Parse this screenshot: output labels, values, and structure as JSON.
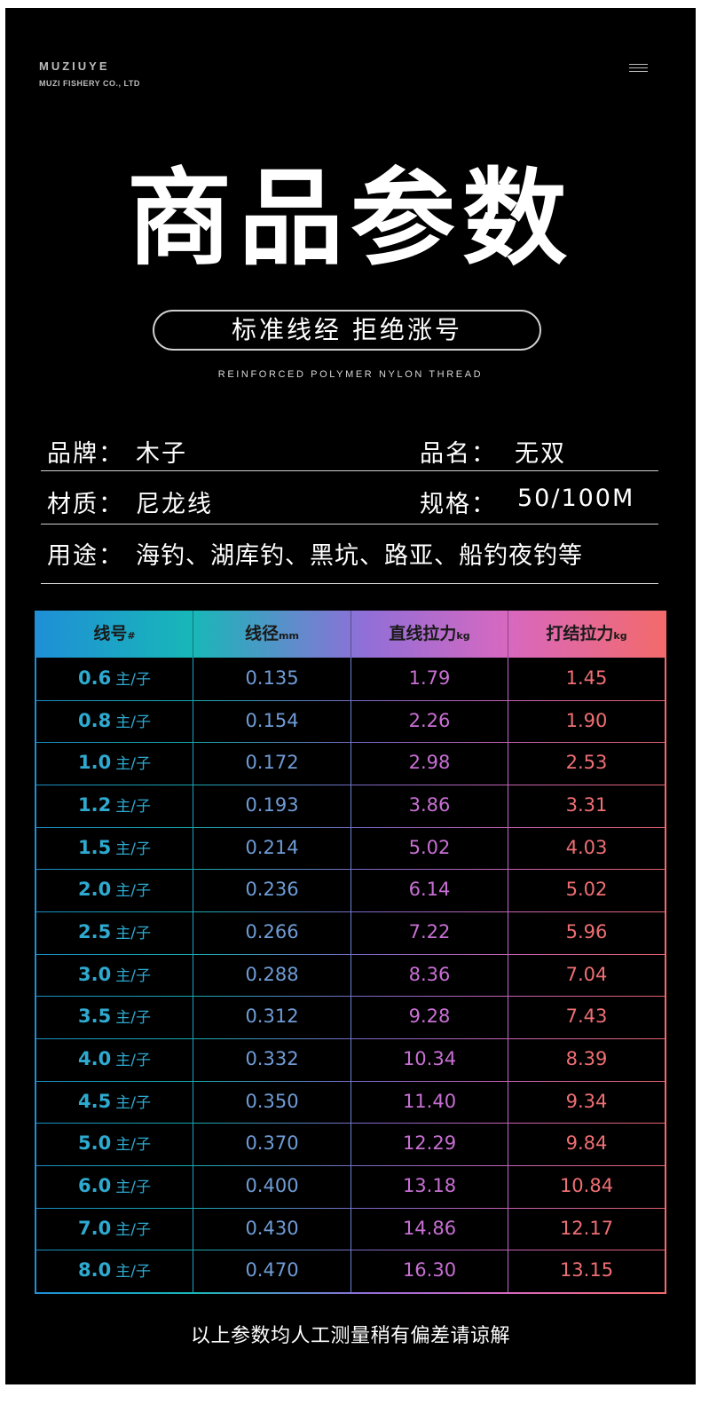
{
  "brand": {
    "name": "MUZIUYE",
    "company": "MUZI FISHERY CO., LTD"
  },
  "header": {
    "title": "商品参数",
    "tagline": "标准线经 拒绝涨号",
    "subtitle": "REINFORCED POLYMER NYLON THREAD"
  },
  "specs": {
    "brand_label": "品牌：",
    "brand_value": "木子",
    "name_label": "品名：",
    "name_value": "无双",
    "material_label": "材质：",
    "material_value": "尼龙线",
    "size_label": "规格：",
    "size_value": "50/100M",
    "usage_label": "用途：",
    "usage_value": "海钓、湖库钓、黑坑、路亚、船钓夜钓等"
  },
  "table": {
    "headers": [
      {
        "text": "线号",
        "unit": "#"
      },
      {
        "text": "线径",
        "unit": "mm"
      },
      {
        "text": "直线拉力",
        "unit": "kg"
      },
      {
        "text": "打结拉力",
        "unit": "kg"
      }
    ],
    "unit_suffix": "主/子",
    "rows": [
      [
        "0.6",
        "0.135",
        "1.79",
        "1.45"
      ],
      [
        "0.8",
        "0.154",
        "2.26",
        "1.90"
      ],
      [
        "1.0",
        "0.172",
        "2.98",
        "2.53"
      ],
      [
        "1.2",
        "0.193",
        "3.86",
        "3.31"
      ],
      [
        "1.5",
        "0.214",
        "5.02",
        "4.03"
      ],
      [
        "2.0",
        "0.236",
        "6.14",
        "5.02"
      ],
      [
        "2.5",
        "0.266",
        "7.22",
        "5.96"
      ],
      [
        "3.0",
        "0.288",
        "8.36",
        "7.04"
      ],
      [
        "3.5",
        "0.312",
        "9.28",
        "7.43"
      ],
      [
        "4.0",
        "0.332",
        "10.34",
        "8.39"
      ],
      [
        "4.5",
        "0.350",
        "11.40",
        "9.34"
      ],
      [
        "5.0",
        "0.370",
        "12.29",
        "9.84"
      ],
      [
        "6.0",
        "0.400",
        "13.18",
        "10.84"
      ],
      [
        "7.0",
        "0.430",
        "14.86",
        "12.17"
      ],
      [
        "8.0",
        "0.470",
        "16.30",
        "13.15"
      ]
    ]
  },
  "footer": {
    "note": "以上参数均人工测量稍有偏差请谅解"
  },
  "colors": {
    "col0": "#2eaad0",
    "col1": "#6f9cd6",
    "col2": "#c86fd4",
    "col3": "#ef6f74"
  },
  "icons": {
    "menu": "hamburger-menu-icon"
  }
}
